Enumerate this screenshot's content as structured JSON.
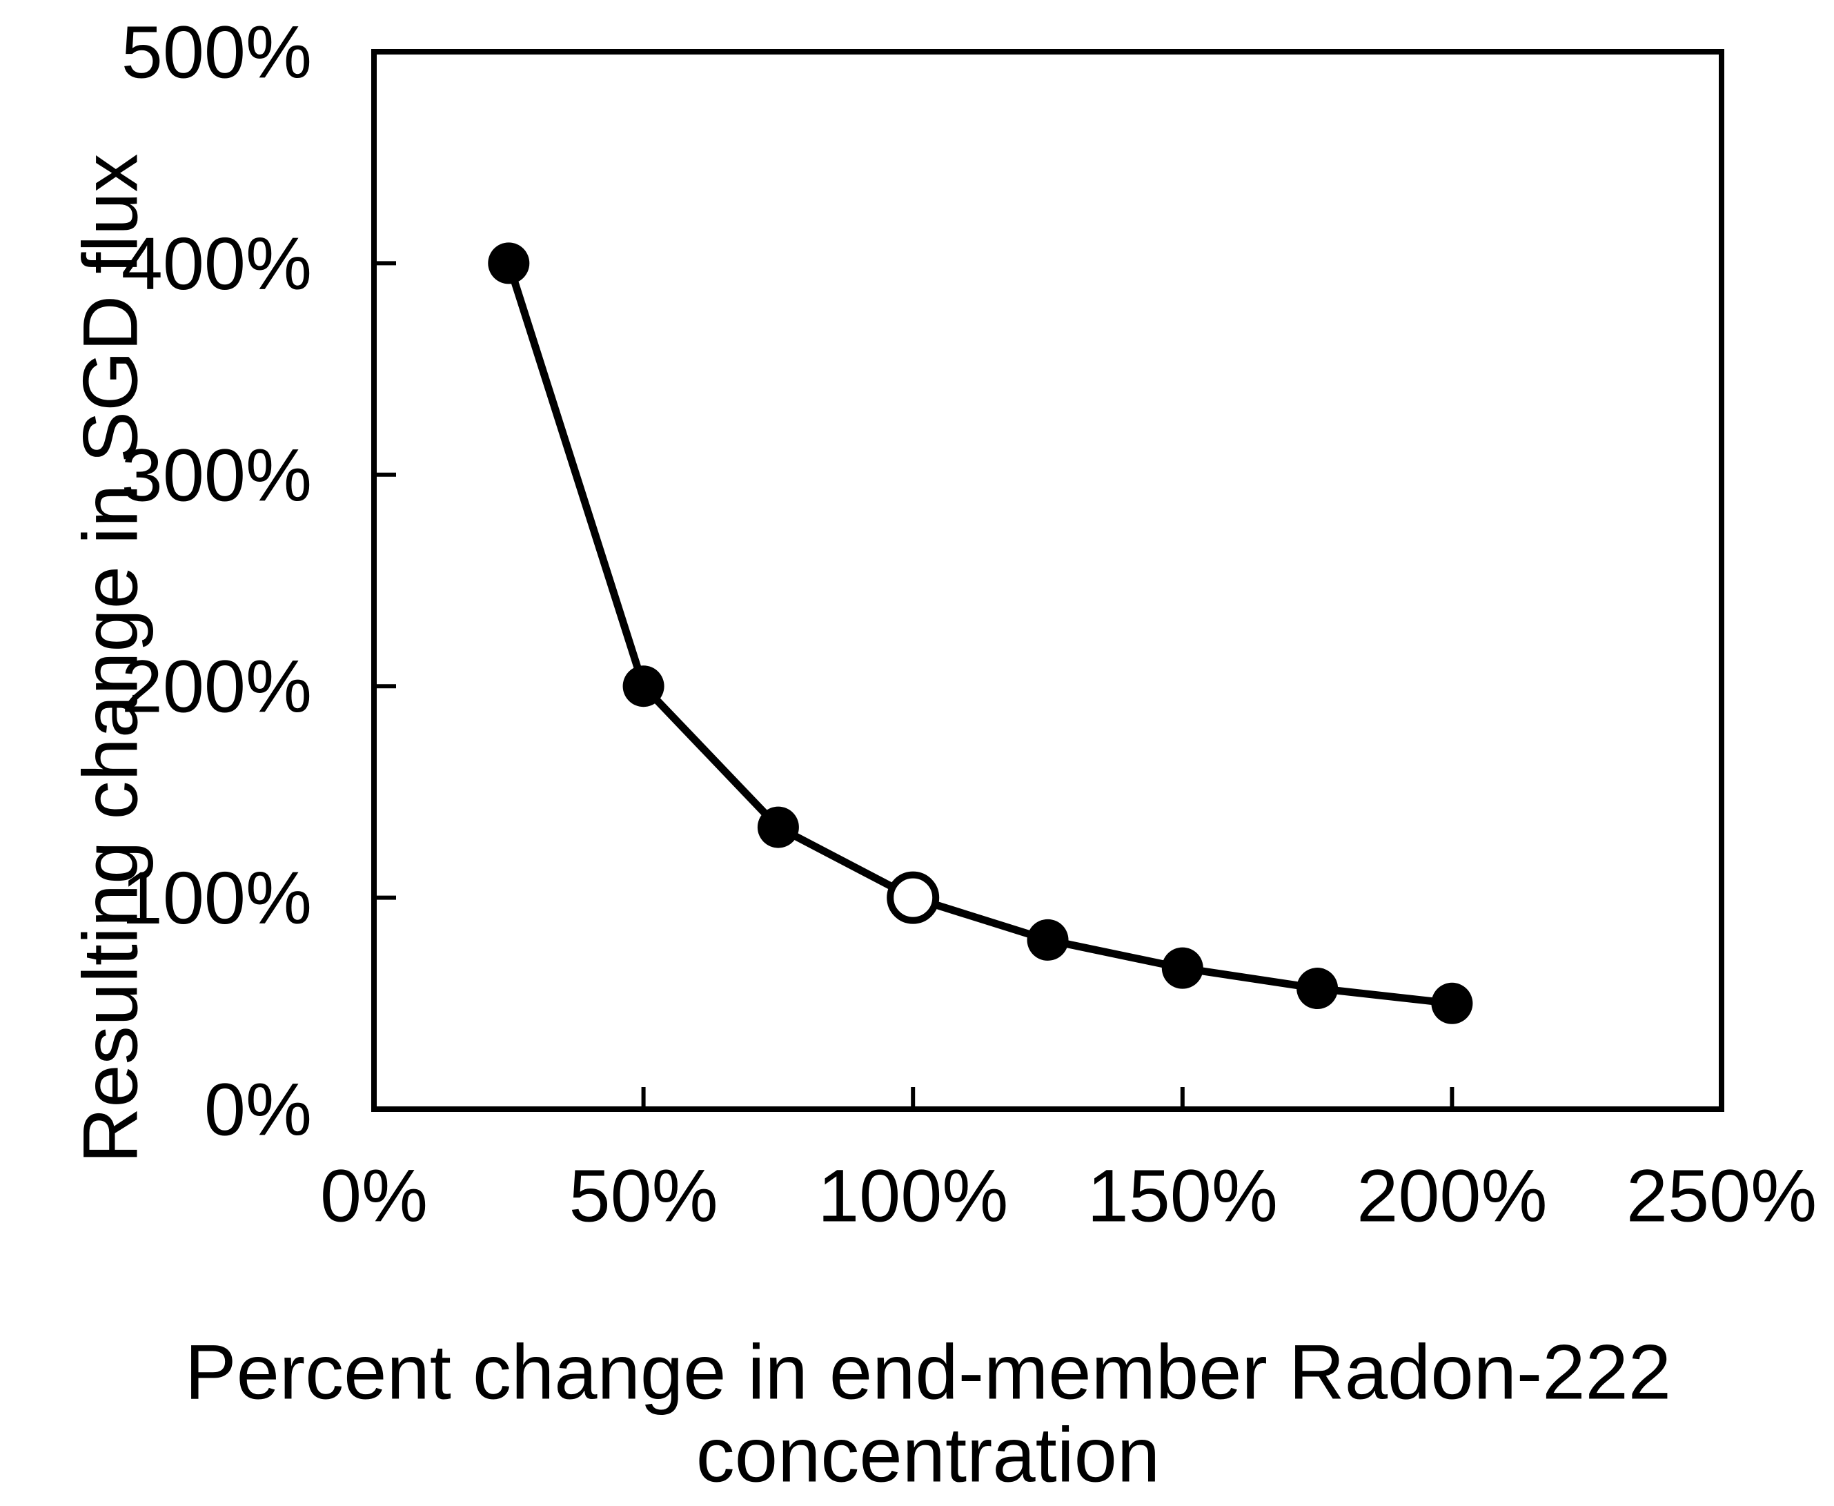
{
  "chart_data": {
    "type": "line",
    "title": "",
    "xlabel": "Percent change in end-member Radon-222 concentration",
    "xlabel_lines": [
      "Percent change in end-member Radon-222",
      "concentration"
    ],
    "ylabel": "Resulting change in SGD flux",
    "xlim": [
      0,
      250
    ],
    "ylim": [
      0,
      500
    ],
    "grid": false,
    "legend": false,
    "x_ticks": [
      {
        "value": 0,
        "label": "0%"
      },
      {
        "value": 50,
        "label": "50%"
      },
      {
        "value": 100,
        "label": "100%"
      },
      {
        "value": 150,
        "label": "150%"
      },
      {
        "value": 200,
        "label": "200%"
      },
      {
        "value": 250,
        "label": "250%"
      }
    ],
    "y_ticks": [
      {
        "value": 0,
        "label": "0%"
      },
      {
        "value": 100,
        "label": "100%"
      },
      {
        "value": 200,
        "label": "200%"
      },
      {
        "value": 300,
        "label": "300%"
      },
      {
        "value": 400,
        "label": "400%"
      },
      {
        "value": 500,
        "label": "500%"
      }
    ],
    "series": [
      {
        "color": "#000000",
        "points": [
          {
            "x": 25,
            "y": 400,
            "marker": "filled"
          },
          {
            "x": 50,
            "y": 200,
            "marker": "filled"
          },
          {
            "x": 75,
            "y": 133.3,
            "marker": "filled"
          },
          {
            "x": 100,
            "y": 100,
            "marker": "open"
          },
          {
            "x": 125,
            "y": 80,
            "marker": "filled"
          },
          {
            "x": 150,
            "y": 66.7,
            "marker": "filled"
          },
          {
            "x": 175,
            "y": 57.1,
            "marker": "filled"
          },
          {
            "x": 200,
            "y": 50,
            "marker": "filled"
          }
        ]
      }
    ],
    "colors": {
      "line": "#000000",
      "marker_fill": "#000000",
      "open_marker_fill": "#ffffff",
      "background": "#ffffff",
      "text": "#000000"
    }
  }
}
